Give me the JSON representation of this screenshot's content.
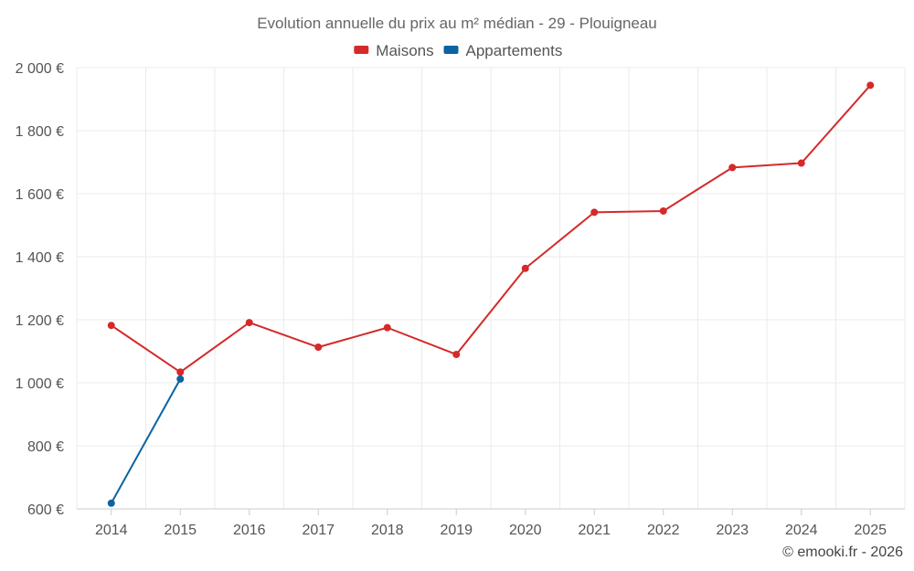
{
  "chart_data": {
    "type": "line",
    "title": "Evolution annuelle du prix au m² médian - 29 - Plouigneau",
    "categories": [
      "2014",
      "2015",
      "2016",
      "2017",
      "2018",
      "2019",
      "2020",
      "2021",
      "2022",
      "2023",
      "2024",
      "2025"
    ],
    "series": [
      {
        "name": "Maisons",
        "color": "#d42a2a",
        "values": [
          1182,
          1034,
          1191,
          1113,
          1175,
          1090,
          1363,
          1541,
          1545,
          1683,
          1697,
          1944
        ]
      },
      {
        "name": "Appartements",
        "color": "#0b63a0",
        "values": [
          618,
          1012,
          null,
          null,
          null,
          null,
          null,
          null,
          null,
          null,
          null,
          null
        ]
      }
    ],
    "ylim": [
      600,
      2000
    ],
    "yticks": [
      600,
      800,
      1000,
      1200,
      1400,
      1600,
      1800,
      2000
    ],
    "ytick_labels": [
      "600 €",
      "800 €",
      "1 000 €",
      "1 200 €",
      "1 400 €",
      "1 600 €",
      "1 800 €",
      "2 000 €"
    ],
    "xlabel": "",
    "ylabel": "",
    "grid": true,
    "legend_position": "top-center"
  },
  "credit": "© emooki.fr - 2026"
}
